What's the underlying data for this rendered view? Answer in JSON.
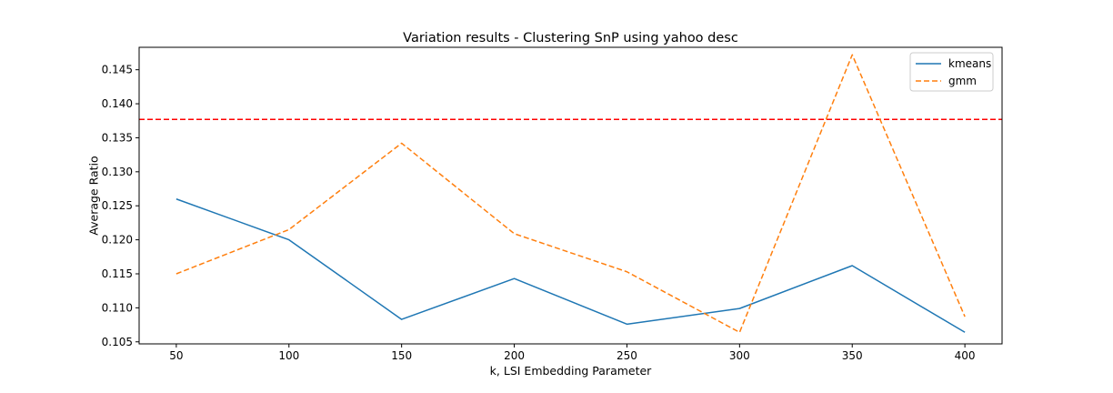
{
  "chart_data": {
    "type": "line",
    "title": "Variation results - Clustering SnP using yahoo desc",
    "xlabel": "k, LSI Embedding Parameter",
    "ylabel": "Average Ratio",
    "x": [
      50,
      100,
      150,
      200,
      250,
      300,
      350,
      400
    ],
    "xlim": [
      33.5,
      416.5
    ],
    "ylim": [
      0.1047,
      0.1483
    ],
    "xticks": [
      50,
      100,
      150,
      200,
      250,
      300,
      350,
      400
    ],
    "yticks": [
      0.105,
      0.11,
      0.115,
      0.12,
      0.125,
      0.13,
      0.135,
      0.14,
      0.145
    ],
    "ytick_labels": [
      "0.105",
      "0.110",
      "0.115",
      "0.120",
      "0.125",
      "0.130",
      "0.135",
      "0.140",
      "0.145"
    ],
    "series": [
      {
        "name": "kmeans",
        "values": [
          0.126,
          0.12,
          0.1083,
          0.1143,
          0.1076,
          0.1099,
          0.1162,
          0.1064
        ],
        "color": "#1f77b4",
        "style": "solid"
      },
      {
        "name": "gmm",
        "values": [
          0.115,
          0.1215,
          0.1342,
          0.1209,
          0.1153,
          0.1064,
          0.1472,
          0.1087
        ],
        "color": "#ff7f0e",
        "style": "dashed"
      }
    ],
    "reference_line": {
      "y": 0.1377,
      "color": "#ff0000",
      "style": "dashed"
    },
    "grid": false,
    "legend": "top-right"
  }
}
